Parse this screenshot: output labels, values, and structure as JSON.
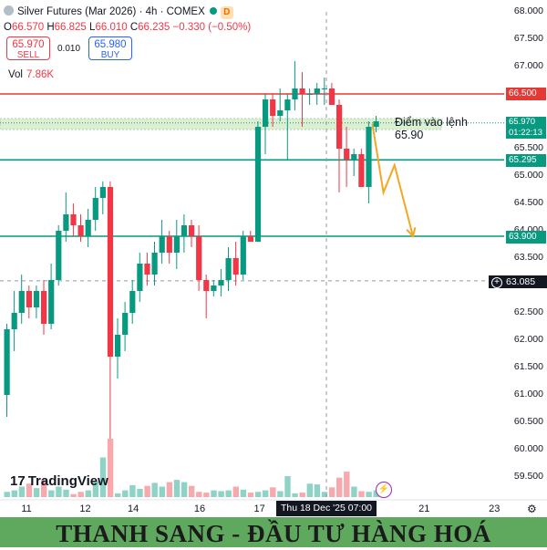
{
  "header": {
    "symbol": "Silver Futures (Mar 2026) · 4h · COMEX",
    "badge": "D",
    "open_label": "O",
    "open": "66.570",
    "high_label": "H",
    "high": "66.825",
    "low_label": "L",
    "low": "66.010",
    "close_label": "C",
    "close": "66.235",
    "change": "−0.330 (−0.50%)"
  },
  "trade": {
    "sell_price": "65.970",
    "sell_label": "SELL",
    "spread": "0.010",
    "buy_price": "65.980",
    "buy_label": "BUY"
  },
  "volume": {
    "label": "Vol",
    "value": "7.86K"
  },
  "annotation": {
    "line1": "Điểm vào lệnh",
    "line2": "65.90"
  },
  "price_tags": {
    "resistance": "66.500",
    "current": "65.970",
    "countdown": "01:22:13",
    "support1": "65.295",
    "support2": "63.900",
    "crosshair": "63.085"
  },
  "crosshair_time": "Thu 18 Dec '25   07:00",
  "logo": "TradingView",
  "banner": "THANH SANG - ĐẦU TƯ HÀNG HOÁ",
  "colors": {
    "up": "#089981",
    "down": "#f23645",
    "vol_up": "#8fd3c6",
    "vol_down": "#f7a9ae",
    "resistance": "#e53935",
    "support": "#089981",
    "arrow": "#f5a623",
    "banner": "#5fa95f"
  },
  "chart_data": {
    "type": "candlestick",
    "title": "Silver Futures (Mar 2026) · 4h · COMEX",
    "y_axis": {
      "min": 59.5,
      "max": 68.0,
      "ticks": [
        "68.000",
        "67.500",
        "67.000",
        "66.500",
        "66.000",
        "65.500",
        "65.000",
        "64.500",
        "64.000",
        "63.500",
        "63.000",
        "62.500",
        "62.000",
        "61.500",
        "61.000",
        "60.500",
        "60.000",
        "59.500"
      ]
    },
    "x_ticks": [
      "11",
      "12",
      "14",
      "16",
      "17",
      "18",
      "21",
      "23"
    ],
    "candles": [
      {
        "o": 61.0,
        "h": 62.3,
        "l": 60.6,
        "c": 62.2
      },
      {
        "o": 62.2,
        "h": 62.9,
        "l": 61.8,
        "c": 62.5
      },
      {
        "o": 62.5,
        "h": 63.2,
        "l": 62.3,
        "c": 62.9
      },
      {
        "o": 62.9,
        "h": 63.0,
        "l": 62.4,
        "c": 62.6
      },
      {
        "o": 62.6,
        "h": 63.0,
        "l": 62.4,
        "c": 62.9
      },
      {
        "o": 62.9,
        "h": 63.1,
        "l": 62.1,
        "c": 62.3
      },
      {
        "o": 62.3,
        "h": 63.4,
        "l": 62.2,
        "c": 63.1
      },
      {
        "o": 63.1,
        "h": 64.1,
        "l": 63.0,
        "c": 64.0
      },
      {
        "o": 64.0,
        "h": 64.7,
        "l": 63.8,
        "c": 64.3
      },
      {
        "o": 64.3,
        "h": 64.5,
        "l": 63.9,
        "c": 64.1
      },
      {
        "o": 64.1,
        "h": 64.3,
        "l": 63.8,
        "c": 63.9
      },
      {
        "o": 63.9,
        "h": 64.4,
        "l": 63.7,
        "c": 64.2
      },
      {
        "o": 64.2,
        "h": 64.8,
        "l": 64.0,
        "c": 64.6
      },
      {
        "o": 64.6,
        "h": 64.9,
        "l": 64.3,
        "c": 64.8
      },
      {
        "o": 64.8,
        "h": 64.9,
        "l": 60.2,
        "c": 61.7
      },
      {
        "o": 61.7,
        "h": 62.4,
        "l": 61.3,
        "c": 62.1
      },
      {
        "o": 62.1,
        "h": 62.7,
        "l": 61.8,
        "c": 62.5
      },
      {
        "o": 62.5,
        "h": 63.1,
        "l": 62.3,
        "c": 62.9
      },
      {
        "o": 62.9,
        "h": 63.6,
        "l": 62.7,
        "c": 63.4
      },
      {
        "o": 63.4,
        "h": 63.6,
        "l": 63.0,
        "c": 63.2
      },
      {
        "o": 63.2,
        "h": 63.8,
        "l": 63.0,
        "c": 63.6
      },
      {
        "o": 63.6,
        "h": 64.2,
        "l": 63.4,
        "c": 63.9
      },
      {
        "o": 63.9,
        "h": 64.0,
        "l": 63.4,
        "c": 63.6
      },
      {
        "o": 63.6,
        "h": 64.2,
        "l": 63.3,
        "c": 63.9
      },
      {
        "o": 63.9,
        "h": 64.3,
        "l": 63.6,
        "c": 64.1
      },
      {
        "o": 64.1,
        "h": 64.2,
        "l": 63.7,
        "c": 63.9
      },
      {
        "o": 63.9,
        "h": 64.1,
        "l": 62.9,
        "c": 63.1
      },
      {
        "o": 63.1,
        "h": 63.2,
        "l": 62.4,
        "c": 62.9
      },
      {
        "o": 62.9,
        "h": 63.1,
        "l": 62.8,
        "c": 63.0
      },
      {
        "o": 63.0,
        "h": 63.3,
        "l": 62.8,
        "c": 63.1
      },
      {
        "o": 63.1,
        "h": 63.7,
        "l": 62.9,
        "c": 63.5
      },
      {
        "o": 63.5,
        "h": 63.8,
        "l": 63.0,
        "c": 63.2
      },
      {
        "o": 63.2,
        "h": 64.0,
        "l": 63.1,
        "c": 63.9
      },
      {
        "o": 63.9,
        "h": 64.0,
        "l": 63.8,
        "c": 63.8
      },
      {
        "o": 63.8,
        "h": 66.0,
        "l": 63.8,
        "c": 65.9
      },
      {
        "o": 65.9,
        "h": 66.5,
        "l": 65.4,
        "c": 66.4
      },
      {
        "o": 66.4,
        "h": 66.5,
        "l": 65.9,
        "c": 66.1
      },
      {
        "o": 66.1,
        "h": 66.6,
        "l": 66.0,
        "c": 66.2
      },
      {
        "o": 66.2,
        "h": 66.5,
        "l": 65.3,
        "c": 66.4
      },
      {
        "o": 66.4,
        "h": 67.1,
        "l": 66.2,
        "c": 66.6
      },
      {
        "o": 66.6,
        "h": 66.9,
        "l": 65.9,
        "c": 66.5
      },
      {
        "o": 66.5,
        "h": 66.6,
        "l": 66.3,
        "c": 66.5
      },
      {
        "o": 66.5,
        "h": 66.7,
        "l": 66.3,
        "c": 66.6
      },
      {
        "o": 66.6,
        "h": 66.8,
        "l": 66.3,
        "c": 66.6
      },
      {
        "o": 66.6,
        "h": 66.7,
        "l": 66.3,
        "c": 66.3
      },
      {
        "o": 66.3,
        "h": 66.4,
        "l": 64.7,
        "c": 65.5
      },
      {
        "o": 65.5,
        "h": 65.9,
        "l": 64.8,
        "c": 65.3
      },
      {
        "o": 65.3,
        "h": 65.5,
        "l": 65.0,
        "c": 65.4
      },
      {
        "o": 65.4,
        "h": 65.5,
        "l": 64.8,
        "c": 64.8
      },
      {
        "o": 64.8,
        "h": 66.0,
        "l": 64.5,
        "c": 65.9
      },
      {
        "o": 65.9,
        "h": 66.1,
        "l": 65.8,
        "c": 66.0
      }
    ],
    "volumes": [
      0.7,
      0.9,
      1.4,
      1.8,
      1.2,
      2.3,
      0.9,
      1.4,
      1.0,
      0.4,
      0.7,
      0.9,
      2.1,
      5.3,
      7.8,
      0.5,
      0.9,
      1.6,
      1.1,
      1.5,
      1.9,
      1.4,
      2.0,
      2.3,
      2.0,
      1.5,
      0.7,
      0.6,
      0.9,
      0.8,
      0.9,
      1.4,
      1.0,
      0.6,
      0.7,
      0.9,
      1.3,
      0.8,
      2.8,
      0.5,
      0.6,
      1.8,
      1.7,
      0.7,
      1.3,
      2.6,
      3.4,
      1.4,
      0.8,
      0.7,
      0.9
    ],
    "horizontal_lines": [
      {
        "price": 66.5,
        "role": "resistance"
      },
      {
        "price": 65.295,
        "role": "support"
      },
      {
        "price": 63.9,
        "role": "support"
      },
      {
        "price": 63.085,
        "role": "crosshair"
      }
    ],
    "entry_zone": [
      65.85,
      66.05
    ],
    "projection_path": [
      [
        49.5,
        65.95
      ],
      [
        51,
        64.7
      ],
      [
        52.5,
        65.2
      ],
      [
        55,
        63.9
      ]
    ],
    "last_price": 65.97
  }
}
